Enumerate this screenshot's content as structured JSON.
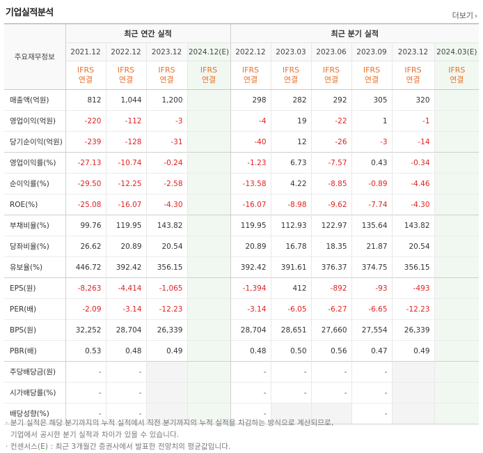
{
  "title": "기업실적분석",
  "more_label": "더보기",
  "header": {
    "label": "주요재무정보",
    "annual_group": "최근 연간 실적",
    "quarterly_group": "최근 분기 실적",
    "annual_periods": [
      "2021.12",
      "2022.12",
      "2023.12",
      "2024.12(E)"
    ],
    "quarterly_periods": [
      "2022.12",
      "2023.03",
      "2023.06",
      "2023.09",
      "2023.12",
      "2024.03(E)"
    ],
    "basis_top": "IFRS",
    "basis_bottom": "연결"
  },
  "rows": [
    {
      "label": "매출액(억원)",
      "annual": [
        "812",
        "1,044",
        "1,200",
        ""
      ],
      "quarterly": [
        "298",
        "282",
        "292",
        "305",
        "320",
        ""
      ]
    },
    {
      "label": "영업이익(억원)",
      "annual": [
        "-220",
        "-112",
        "-3",
        ""
      ],
      "quarterly": [
        "-4",
        "19",
        "-22",
        "1",
        "-1",
        ""
      ]
    },
    {
      "label": "당기순이익(억원)",
      "annual": [
        "-239",
        "-128",
        "-31",
        ""
      ],
      "quarterly": [
        "-40",
        "12",
        "-26",
        "-3",
        "-14",
        ""
      ]
    },
    {
      "label": "영업이익률(%)",
      "annual": [
        "-27.13",
        "-10.74",
        "-0.24",
        ""
      ],
      "quarterly": [
        "-1.23",
        "6.73",
        "-7.57",
        "0.43",
        "-0.34",
        ""
      ]
    },
    {
      "label": "순이익률(%)",
      "annual": [
        "-29.50",
        "-12.25",
        "-2.58",
        ""
      ],
      "quarterly": [
        "-13.58",
        "4.22",
        "-8.85",
        "-0.89",
        "-4.46",
        ""
      ]
    },
    {
      "label": "ROE(%)",
      "annual": [
        "-25.08",
        "-16.07",
        "-4.30",
        ""
      ],
      "quarterly": [
        "-16.07",
        "-8.98",
        "-9.62",
        "-7.74",
        "-4.30",
        ""
      ]
    },
    {
      "label": "부채비율(%)",
      "annual": [
        "99.76",
        "119.95",
        "143.82",
        ""
      ],
      "quarterly": [
        "119.95",
        "112.93",
        "122.97",
        "135.64",
        "143.82",
        ""
      ]
    },
    {
      "label": "당좌비율(%)",
      "annual": [
        "26.62",
        "20.89",
        "20.54",
        ""
      ],
      "quarterly": [
        "20.89",
        "16.78",
        "18.35",
        "21.87",
        "20.54",
        ""
      ]
    },
    {
      "label": "유보율(%)",
      "annual": [
        "446.72",
        "392.42",
        "356.15",
        ""
      ],
      "quarterly": [
        "392.42",
        "391.61",
        "376.37",
        "374.75",
        "356.15",
        ""
      ]
    },
    {
      "label": "EPS(원)",
      "annual": [
        "-8,263",
        "-4,414",
        "-1,065",
        ""
      ],
      "quarterly": [
        "-1,394",
        "412",
        "-892",
        "-93",
        "-493",
        ""
      ]
    },
    {
      "label": "PER(배)",
      "annual": [
        "-2.09",
        "-3.14",
        "-12.23",
        ""
      ],
      "quarterly": [
        "-3.14",
        "-6.05",
        "-6.27",
        "-6.65",
        "-12.23",
        ""
      ]
    },
    {
      "label": "BPS(원)",
      "annual": [
        "32,252",
        "28,704",
        "26,339",
        ""
      ],
      "quarterly": [
        "28,704",
        "28,651",
        "27,660",
        "27,554",
        "26,339",
        ""
      ]
    },
    {
      "label": "PBR(배)",
      "annual": [
        "0.53",
        "0.48",
        "0.49",
        ""
      ],
      "quarterly": [
        "0.48",
        "0.50",
        "0.56",
        "0.47",
        "0.49",
        ""
      ]
    },
    {
      "label": "주당배당금(원)",
      "annual": [
        "-",
        "-",
        "",
        ""
      ],
      "quarterly": [
        "-",
        "-",
        "-",
        "-",
        "",
        ""
      ]
    },
    {
      "label": "시가배당률(%)",
      "annual": [
        "-",
        "-",
        "",
        ""
      ],
      "quarterly": [
        "-",
        "-",
        "-",
        "-",
        "",
        ""
      ]
    },
    {
      "label": "배당성향(%)",
      "annual": [
        "-",
        "-",
        "",
        ""
      ],
      "quarterly": [
        "-",
        "",
        "",
        "-",
        "",
        ""
      ]
    }
  ],
  "notes": {
    "line1": "분기 실적은 해당 분기까지의 누적 실적에서 직전 분기까지의 누적 실적을 차감하는 방식으로 계산되므로,",
    "line2": "기업에서 공시한 분기 실적과 차이가 있을 수 있습니다.",
    "line3_prefix": "컨센서스(",
    "line3_e": "E",
    "line3_suffix": ") : 최근 3개월간 증권사에서 발표한 전망치의 평균값입니다."
  }
}
